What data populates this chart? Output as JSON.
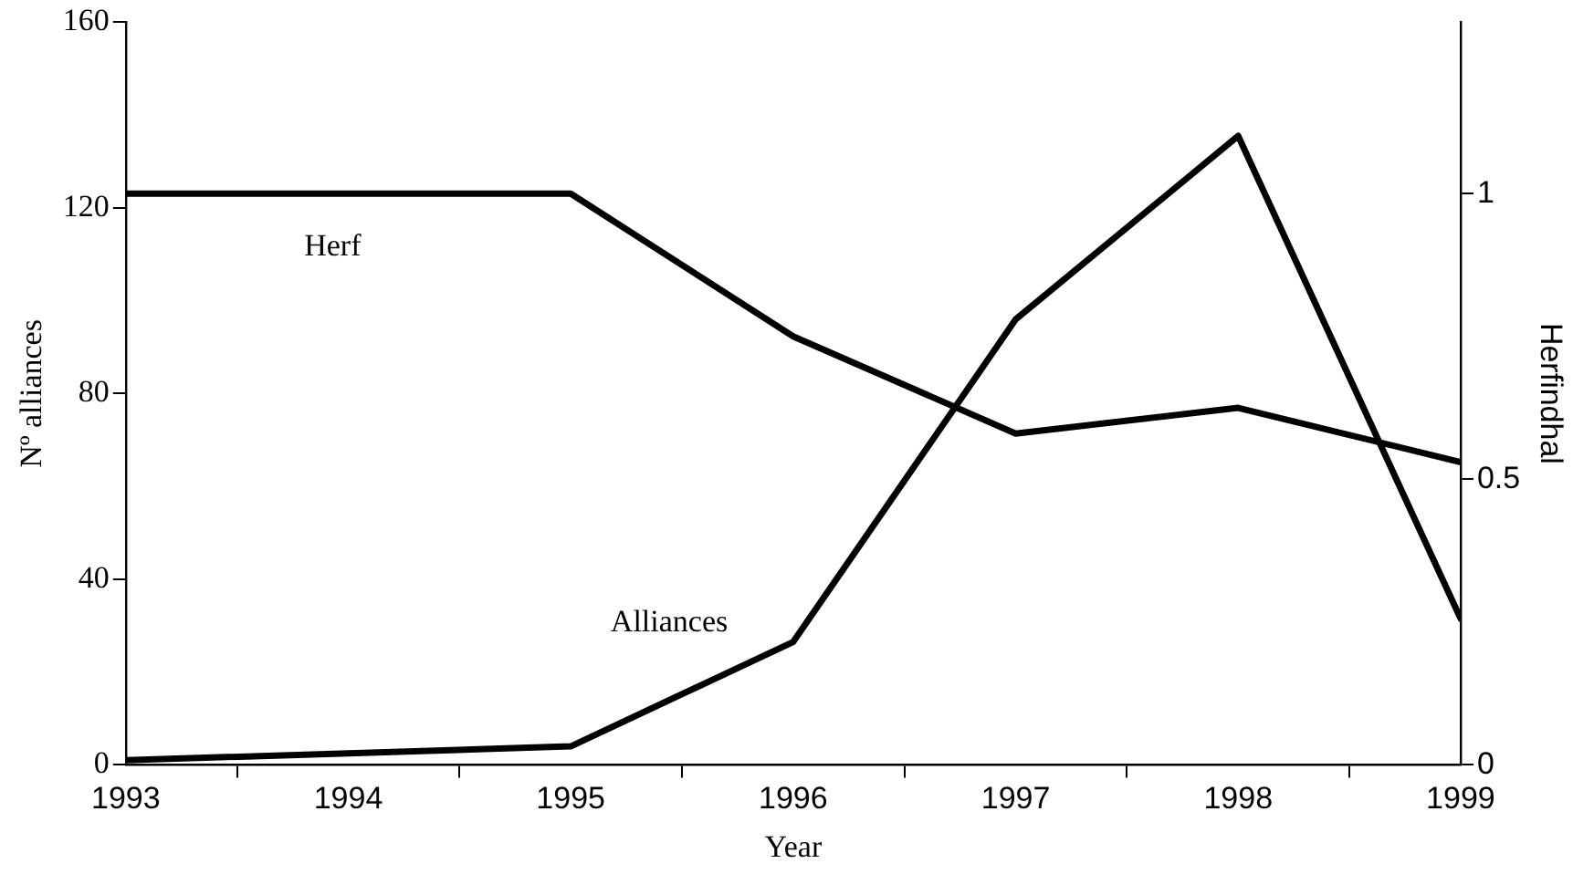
{
  "chart_data": {
    "type": "line",
    "xlabel": "Year",
    "ylabel": "Nº alliances",
    "y2label": "Herfindhal",
    "x": [
      1993,
      1995,
      1996,
      1997,
      1998,
      1999
    ],
    "series": [
      {
        "name": "Alliances",
        "color": "#000000",
        "values": [
          1,
          4,
          26.5,
          96,
          135.5,
          31.5
        ]
      },
      {
        "name": "Herf",
        "color": "#000000",
        "axis": "y2",
        "values": [
          1,
          1,
          0.75,
          0.58,
          0.625,
          0.53
        ]
      }
    ],
    "xlim": [
      1993,
      1999
    ],
    "xticks": [
      1993,
      {
        "value": 1993.5,
        "label": null
      },
      1994,
      {
        "value": 1994.5,
        "label": null
      },
      1995,
      {
        "value": 1995.5,
        "label": null
      },
      1996,
      {
        "value": 1996.5,
        "label": null
      },
      1997,
      {
        "value": 1997.5,
        "label": null
      },
      1998,
      {
        "value": 1998.5,
        "label": null
      },
      1999
    ],
    "ylim": [
      0,
      160
    ],
    "yticks": [
      0,
      40,
      80,
      120,
      160
    ],
    "y2lim": [
      0,
      1.3
    ],
    "y2ticks": [
      0,
      0.5,
      1
    ],
    "grid": false,
    "legend": false,
    "marker": "none",
    "line_style": "solid"
  }
}
